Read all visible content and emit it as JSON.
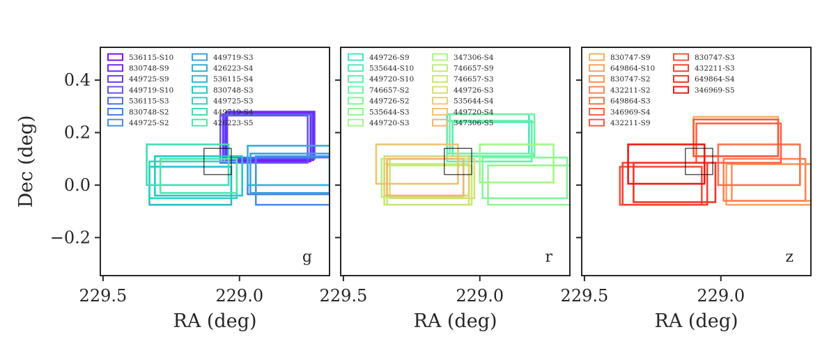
{
  "chart_data": {
    "type": "footprint",
    "ylabel": "Dec (deg)",
    "x_ticks": [
      229.5,
      229.0
    ],
    "x_tick_labels": [
      "229.5",
      "229.0"
    ],
    "y_ticks": [
      0.4,
      0.2,
      0.0,
      -0.2
    ],
    "y_tick_labels": [
      "0.4",
      "0.2",
      "0.0",
      "−0.2"
    ],
    "ylim": [
      -0.345,
      0.525
    ],
    "xlim": [
      229.51,
      228.67
    ],
    "target_box": {
      "ra": [
        229.13,
        229.03
      ],
      "dec": [
        0.04,
        0.14
      ]
    },
    "panels": [
      {
        "band": "g",
        "xlabel": "RA (deg)",
        "legend": [
          {
            "label": "536115-S10",
            "color": "#7f0dfa"
          },
          {
            "label": "830748-S9",
            "color": "#7526f9"
          },
          {
            "label": "449725-S9",
            "color": "#6b3df7"
          },
          {
            "label": "449719-S10",
            "color": "#6153f4"
          },
          {
            "label": "536115-S3",
            "color": "#5768f0"
          },
          {
            "label": "830748-S2",
            "color": "#4d7ceb"
          },
          {
            "label": "449725-S2",
            "color": "#4490e5"
          },
          {
            "label": "449719-S3",
            "color": "#3aa2de"
          },
          {
            "label": "426223-S4",
            "color": "#31b1d7"
          },
          {
            "label": "536115-S4",
            "color": "#28bfcf"
          },
          {
            "label": "830748-S3",
            "color": "#1fcbc7"
          },
          {
            "label": "449725-S3",
            "color": "#2ed5bd"
          },
          {
            "label": "449719-S4",
            "color": "#40deb3"
          },
          {
            "label": "426223-S5",
            "color": "#52e5a8"
          }
        ],
        "rects": [
          {
            "c": "#7f0dfa",
            "ra": [
              229.05,
              228.73
            ],
            "dec": [
              0.095,
              0.275
            ]
          },
          {
            "c": "#7526f9",
            "ra": [
              229.06,
              228.74
            ],
            "dec": [
              0.09,
              0.27
            ]
          },
          {
            "c": "#6b3df7",
            "ra": [
              229.045,
              228.725
            ],
            "dec": [
              0.1,
              0.28
            ]
          },
          {
            "c": "#6153f4",
            "ra": [
              229.07,
              228.75
            ],
            "dec": [
              0.085,
              0.265
            ]
          },
          {
            "c": "#5768f0",
            "ra": [
              229.055,
              228.735
            ],
            "dec": [
              0.105,
              0.27
            ]
          },
          {
            "c": "#4d7ceb",
            "ra": [
              228.97,
              228.64
            ],
            "dec": [
              -0.035,
              0.105
            ]
          },
          {
            "c": "#4490e5",
            "ra": [
              228.94,
              228.62
            ],
            "dec": [
              -0.075,
              0.11
            ]
          },
          {
            "c": "#3aa2de",
            "ra": [
              228.96,
              228.67
            ],
            "dec": [
              -0.03,
              0.12
            ]
          },
          {
            "c": "#31b1d7",
            "ra": [
              228.97,
              228.65
            ],
            "dec": [
              0.0,
              0.15
            ]
          },
          {
            "c": "#28bfcf",
            "ra": [
              229.33,
              229.03
            ],
            "dec": [
              -0.075,
              0.07
            ]
          },
          {
            "c": "#1fcbc7",
            "ra": [
              229.31,
              228.99
            ],
            "dec": [
              -0.04,
              0.11
            ]
          },
          {
            "c": "#2ed5bd",
            "ra": [
              229.33,
              229.01
            ],
            "dec": [
              -0.05,
              0.09
            ]
          },
          {
            "c": "#40deb3",
            "ra": [
              229.34,
              229.04
            ],
            "dec": [
              0.0,
              0.155
            ]
          },
          {
            "c": "#52e5a8",
            "ra": [
              229.29,
              229.01
            ],
            "dec": [
              -0.03,
              0.1
            ]
          }
        ]
      },
      {
        "band": "r",
        "xlabel": "RA (deg)",
        "legend": [
          {
            "label": "449726-S9",
            "color": "#44e6c1"
          },
          {
            "label": "535644-S10",
            "color": "#54ecb7"
          },
          {
            "label": "449720-S10",
            "color": "#63f0ad"
          },
          {
            "label": "746657-S2",
            "color": "#73f4a4"
          },
          {
            "label": "449726-S2",
            "color": "#82f69b"
          },
          {
            "label": "535644-S3",
            "color": "#92f792"
          },
          {
            "label": "449720-S3",
            "color": "#a1f78a"
          },
          {
            "label": "347306-S4",
            "color": "#b0f482"
          },
          {
            "label": "746657-S9",
            "color": "#beef7c"
          },
          {
            "label": "746657-S3",
            "color": "#cbe776"
          },
          {
            "label": "449726-S3",
            "color": "#d8de72"
          },
          {
            "label": "535644-S4",
            "color": "#e3d26f"
          },
          {
            "label": "449720-S4",
            "color": "#ecc56e"
          },
          {
            "label": "347306-S5",
            "color": "#f2b56e"
          }
        ],
        "rects": [
          {
            "c": "#44e6c1",
            "ra": [
              229.12,
              228.82
            ],
            "dec": [
              0.12,
              0.27
            ]
          },
          {
            "c": "#54ecb7",
            "ra": [
              229.1,
              228.8
            ],
            "dec": [
              0.11,
              0.24
            ]
          },
          {
            "c": "#63f0ad",
            "ra": [
              229.12,
              228.81
            ],
            "dec": [
              0.09,
              0.245
            ]
          },
          {
            "c": "#73f4a4",
            "ra": [
              229.11,
              228.8
            ],
            "dec": [
              0.12,
              0.27
            ]
          },
          {
            "c": "#82f69b",
            "ra": [
              228.99,
              228.68
            ],
            "dec": [
              -0.05,
              0.105
            ]
          },
          {
            "c": "#92f792",
            "ra": [
              228.97,
              228.66
            ],
            "dec": [
              -0.075,
              0.075
            ]
          },
          {
            "c": "#a1f78a",
            "ra": [
              229.0,
              228.73
            ],
            "dec": [
              0.01,
              0.155
            ]
          },
          {
            "c": "#b0f482",
            "ra": [
              229.36,
              229.06
            ],
            "dec": [
              -0.045,
              0.1
            ]
          },
          {
            "c": "#beef7c",
            "ra": [
              229.34,
              229.03
            ],
            "dec": [
              -0.075,
              0.075
            ]
          },
          {
            "c": "#cbe776",
            "ra": [
              229.35,
              229.04
            ],
            "dec": [
              -0.075,
              0.08
            ]
          },
          {
            "c": "#d8de72",
            "ra": [
              229.33,
              229.02
            ],
            "dec": [
              -0.05,
              0.1
            ]
          },
          {
            "c": "#e3d26f",
            "ra": [
              229.35,
              229.04
            ],
            "dec": [
              -0.04,
              0.11
            ]
          },
          {
            "c": "#ecc56e",
            "ra": [
              229.38,
              229.08
            ],
            "dec": [
              0.005,
              0.155
            ]
          },
          {
            "c": "#f2b56e",
            "ra": [
              229.34,
              229.06
            ],
            "dec": [
              -0.04,
              0.1
            ]
          }
        ]
      },
      {
        "band": "z",
        "xlabel": "RA (deg)",
        "legend": [
          {
            "label": "830747-S9",
            "color": "#f6b163"
          },
          {
            "label": "649864-S10",
            "color": "#f9a35e"
          },
          {
            "label": "830747-S2",
            "color": "#fb9459"
          },
          {
            "label": "432211-S2",
            "color": "#fd8453"
          },
          {
            "label": "649864-S3",
            "color": "#fe734d"
          },
          {
            "label": "346969-S4",
            "color": "#fe6247"
          },
          {
            "label": "432211-S9",
            "color": "#f65c40"
          },
          {
            "label": "830747-S3",
            "color": "#f55038"
          },
          {
            "label": "432211-S3",
            "color": "#f3432f"
          },
          {
            "label": "649864-S4",
            "color": "#f23526"
          },
          {
            "label": "346969-S5",
            "color": "#ee1b14"
          }
        ],
        "rects": [
          {
            "c": "#f6b163",
            "ra": [
              229.1,
              228.79
            ],
            "dec": [
              0.11,
              0.26
            ]
          },
          {
            "c": "#f9a35e",
            "ra": [
              228.98,
              228.67
            ],
            "dec": [
              -0.075,
              0.08
            ]
          },
          {
            "c": "#fb9459",
            "ra": [
              228.96,
              228.66
            ],
            "dec": [
              -0.06,
              0.08
            ]
          },
          {
            "c": "#fd8453",
            "ra": [
              228.99,
              228.69
            ],
            "dec": [
              -0.06,
              0.1
            ]
          },
          {
            "c": "#fe734d",
            "ra": [
              229.01,
              228.71
            ],
            "dec": [
              0.0,
              0.155
            ]
          },
          {
            "c": "#fe6247",
            "ra": [
              229.09,
              228.78
            ],
            "dec": [
              0.085,
              0.235
            ]
          },
          {
            "c": "#f65c40",
            "ra": [
              229.1,
              228.79
            ],
            "dec": [
              0.11,
              0.25
            ]
          },
          {
            "c": "#f55038",
            "ra": [
              229.37,
              229.07
            ],
            "dec": [
              -0.075,
              0.07
            ]
          },
          {
            "c": "#f3432f",
            "ra": [
              229.36,
              229.05
            ],
            "dec": [
              -0.075,
              0.085
            ]
          },
          {
            "c": "#f23526",
            "ra": [
              229.32,
              229.02
            ],
            "dec": [
              -0.065,
              0.085
            ]
          },
          {
            "c": "#ee1b14",
            "ra": [
              229.34,
              229.06
            ],
            "dec": [
              0.005,
              0.155
            ]
          }
        ]
      }
    ]
  }
}
